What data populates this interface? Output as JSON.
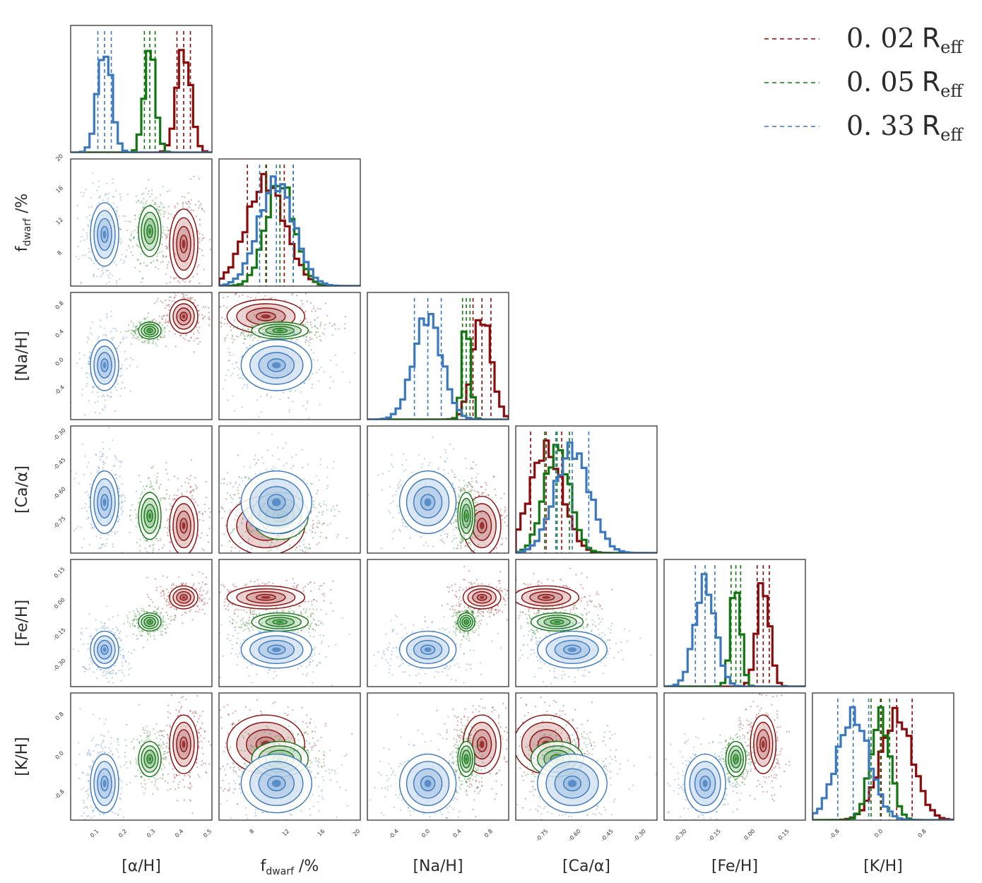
{
  "chart_data": {
    "type": "scatter",
    "variables": [
      {
        "key": "alpha",
        "label": "[α/H]",
        "ticks": [
          "0.1",
          "0.2",
          "0.3",
          "0.4",
          "0.5"
        ],
        "range": [
          0.0,
          0.5
        ],
        "tickvals": [
          0.1,
          0.2,
          0.3,
          0.4,
          0.5
        ]
      },
      {
        "key": "fdwarf",
        "label": "f",
        "label_sub": "dwarf",
        "label_suffix": " /%",
        "ticks": [
          "8",
          "12",
          "16",
          "20"
        ],
        "range": [
          4,
          20
        ],
        "tickvals": [
          8,
          12,
          16,
          20
        ]
      },
      {
        "key": "na",
        "label": "[Na/H]",
        "ticks": [
          "-0.4",
          "0.0",
          "0.4",
          "0.8"
        ],
        "range": [
          -0.8,
          1.0
        ],
        "tickvals": [
          -0.4,
          0.0,
          0.4,
          0.8
        ]
      },
      {
        "key": "ca",
        "label": "[Ca/α]",
        "ticks": [
          "-0.75",
          "-0.60",
          "-0.45",
          "-0.30"
        ],
        "range": [
          -0.9,
          -0.25
        ],
        "tickvals": [
          -0.75,
          -0.6,
          -0.45,
          -0.3
        ]
      },
      {
        "key": "fe",
        "label": "[Fe/H]",
        "ticks": [
          "-0.30",
          "-0.15",
          "0.00",
          "0.15"
        ],
        "range": [
          -0.4,
          0.22
        ],
        "tickvals": [
          -0.3,
          -0.15,
          0.0,
          0.15
        ]
      },
      {
        "key": "k",
        "label": "[K/H]",
        "ticks": [
          "-0.8",
          "0.0",
          "0.8"
        ],
        "range": [
          -1.3,
          1.3
        ],
        "tickvals": [
          -0.8,
          0.0,
          0.8
        ]
      }
    ],
    "series": [
      {
        "name": "0.02 R_eff",
        "legend_main": "0. 02",
        "legend_R": "R",
        "legend_sub": "eff",
        "color": "#8b0a0a",
        "mean": {
          "alpha": 0.4,
          "fdwarf": 9.3,
          "na": 0.66,
          "ca": -0.76,
          "fe": 0.035,
          "k": 0.25
        },
        "sd": {
          "alpha": 0.025,
          "fdwarf": 2.2,
          "na": 0.12,
          "ca": 0.075,
          "fe": 0.028,
          "k": 0.3
        }
      },
      {
        "name": "0.05 R_eff",
        "legend_main": "0. 05",
        "legend_R": "R",
        "legend_sub": "eff",
        "color": "#117711",
        "mean": {
          "alpha": 0.28,
          "fdwarf": 10.9,
          "na": 0.46,
          "ca": -0.71,
          "fe": -0.085,
          "k": -0.05
        },
        "sd": {
          "alpha": 0.02,
          "fdwarf": 1.6,
          "na": 0.05,
          "ca": 0.06,
          "fe": 0.022,
          "k": 0.18
        }
      },
      {
        "name": "0.33 R_eff",
        "legend_main": "0. 33",
        "legend_R": "R",
        "legend_sub": "eff",
        "color": "#3a78c0",
        "mean": {
          "alpha": 0.12,
          "fdwarf": 10.5,
          "na": -0.03,
          "ca": -0.64,
          "fe": -0.22,
          "k": -0.55
        },
        "sd": {
          "alpha": 0.025,
          "fdwarf": 2.0,
          "na": 0.18,
          "ca": 0.08,
          "fe": 0.045,
          "k": 0.3
        }
      }
    ],
    "grid": false,
    "legend_position": "top-right"
  }
}
